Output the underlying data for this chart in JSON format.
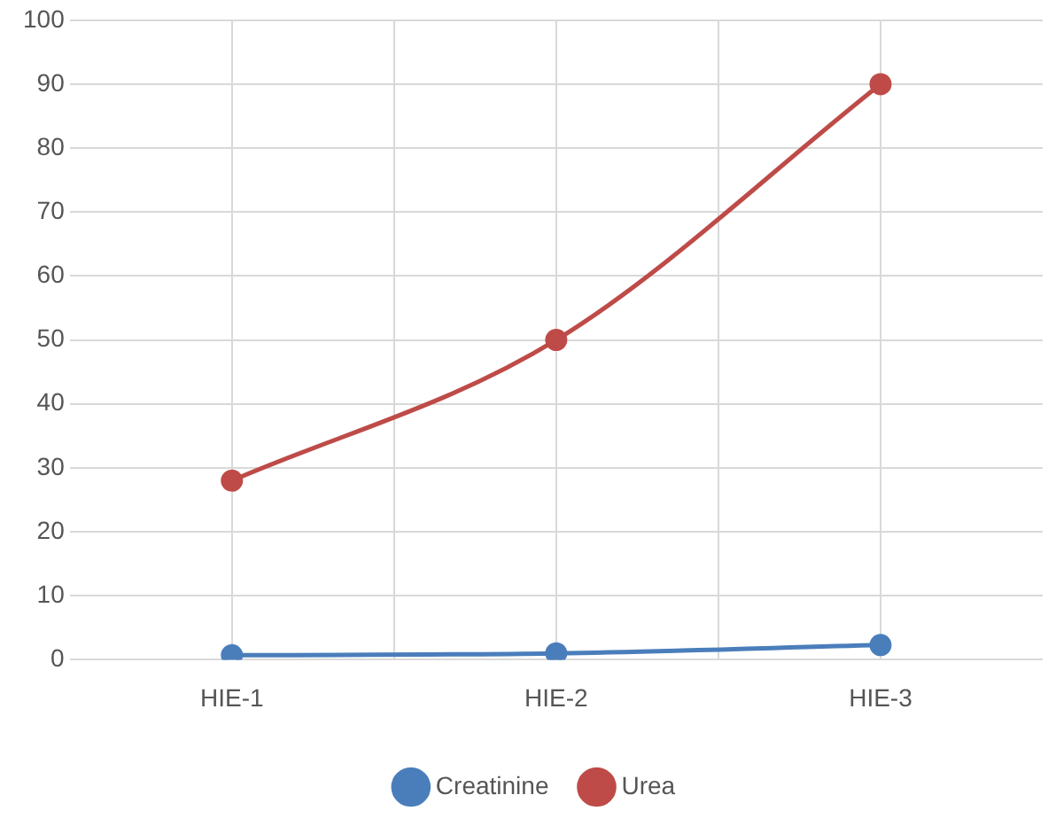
{
  "chart_data": {
    "type": "line",
    "categories": [
      "HIE-1",
      "HIE-2",
      "HIE-3"
    ],
    "series": [
      {
        "name": "Creatinine",
        "color": "#4a7ebb",
        "values": [
          0.7,
          1.0,
          2.3
        ]
      },
      {
        "name": "Urea",
        "color": "#be4b48",
        "values": [
          28,
          50,
          90
        ]
      }
    ],
    "ylim": [
      0,
      100
    ],
    "yticks": [
      0,
      10,
      20,
      30,
      40,
      50,
      60,
      70,
      80,
      90,
      100
    ],
    "grid": true,
    "legend": "bottom",
    "marker": "circle",
    "line_style": "solid"
  }
}
